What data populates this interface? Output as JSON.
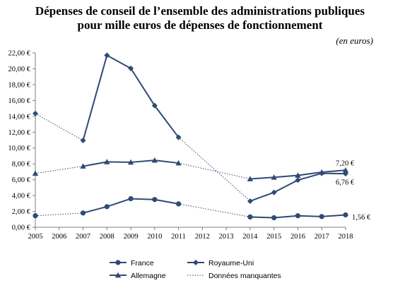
{
  "chart_data": {
    "type": "line",
    "title": [
      "Dépenses de conseil de l’ensemble des administrations publiques",
      "pour mille euros de dépenses de fonctionnement"
    ],
    "unit": "(en euros)",
    "x": [
      2005,
      2006,
      2007,
      2008,
      2009,
      2010,
      2011,
      2012,
      2013,
      2014,
      2015,
      2016,
      2017,
      2018
    ],
    "y_ticks": [
      "0,00 €",
      "2,00 €",
      "4,00 €",
      "6,00 €",
      "8,00 €",
      "10,00 €",
      "12,00 €",
      "14,00 €",
      "16,00 €",
      "18,00 €",
      "20,00 €",
      "22,00 €"
    ],
    "ylim": [
      0,
      22
    ],
    "colors": {
      "series": "#2e4a75",
      "axis": "#7f7f7f"
    },
    "series": [
      {
        "name": "France",
        "marker": "circle",
        "values": [
          1.45,
          null,
          1.8,
          2.6,
          3.6,
          3.5,
          2.95,
          null,
          null,
          1.3,
          1.2,
          1.45,
          1.35,
          1.56
        ]
      },
      {
        "name": "Royaume-Uni",
        "marker": "diamond",
        "values": [
          14.35,
          null,
          10.95,
          21.7,
          20.05,
          15.35,
          11.35,
          null,
          null,
          3.3,
          4.4,
          5.95,
          6.8,
          6.76
        ]
      },
      {
        "name": "Allemagne",
        "marker": "triangle",
        "values": [
          6.8,
          null,
          7.7,
          8.25,
          8.2,
          8.45,
          8.1,
          null,
          null,
          6.1,
          6.3,
          6.55,
          6.95,
          7.2
        ]
      }
    ],
    "missing_data_label": "Données manquantes",
    "annotations": [
      {
        "text": "7,20 €",
        "x": 2018,
        "series": "Allemagne"
      },
      {
        "text": "6,76 €",
        "x": 2018,
        "series": "Royaume-Uni"
      },
      {
        "text": "1,56 €",
        "x": 2018,
        "series": "France"
      }
    ],
    "legend": {
      "position": "bottom",
      "items": [
        "France",
        "Royaume-Uni",
        "Allemagne",
        "Données manquantes"
      ]
    }
  }
}
